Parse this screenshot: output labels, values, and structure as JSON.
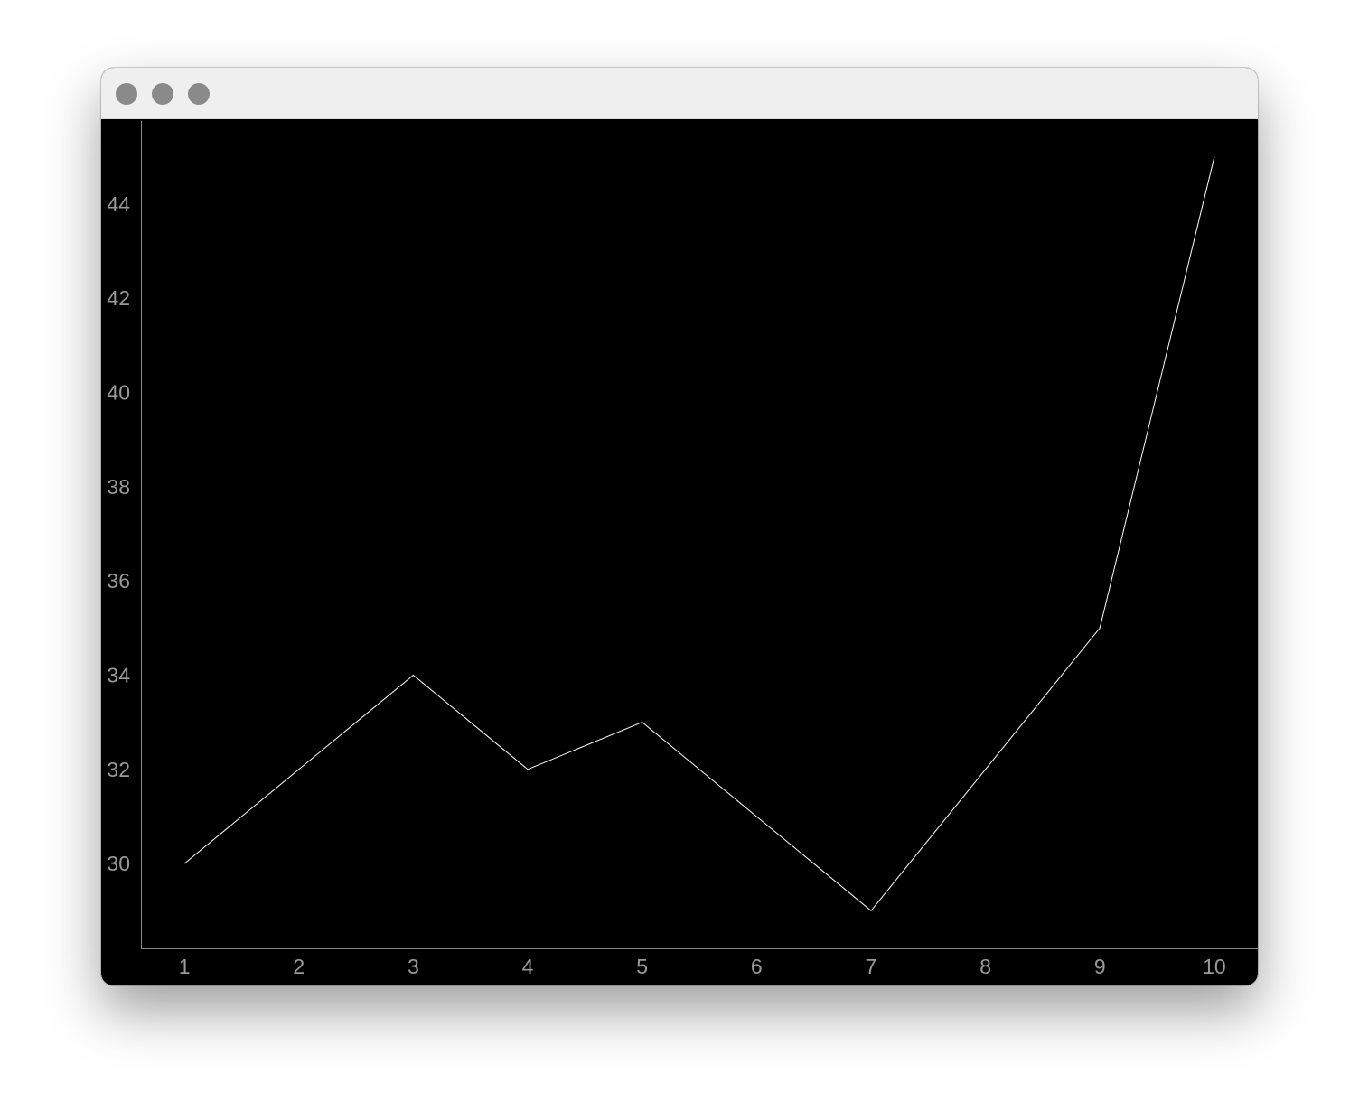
{
  "window": {
    "controls": [
      {
        "name": "close",
        "color": "#8a8a8a"
      },
      {
        "name": "minimize",
        "color": "#8a8a8a"
      },
      {
        "name": "zoom",
        "color": "#8a8a8a"
      }
    ]
  },
  "chart_data": {
    "type": "line",
    "x": [
      1,
      2,
      3,
      4,
      5,
      6,
      7,
      8,
      9,
      10
    ],
    "series": [
      {
        "values": [
          30,
          32,
          34,
          32,
          33,
          31,
          29,
          32,
          35,
          45
        ],
        "color": "#ffffff"
      }
    ],
    "xticks": [
      1,
      2,
      3,
      4,
      5,
      6,
      7,
      8,
      9,
      10
    ],
    "yticks": [
      30,
      32,
      34,
      36,
      38,
      40,
      42,
      44
    ],
    "xlim": [
      0.62,
      10.38
    ],
    "ylim": [
      28.2,
      45.8
    ],
    "grid": false,
    "background": "#000000",
    "axis_color": "#8a8a8a",
    "tick_label_color": "#9a9a9a",
    "title": "",
    "xlabel": "",
    "ylabel": ""
  }
}
